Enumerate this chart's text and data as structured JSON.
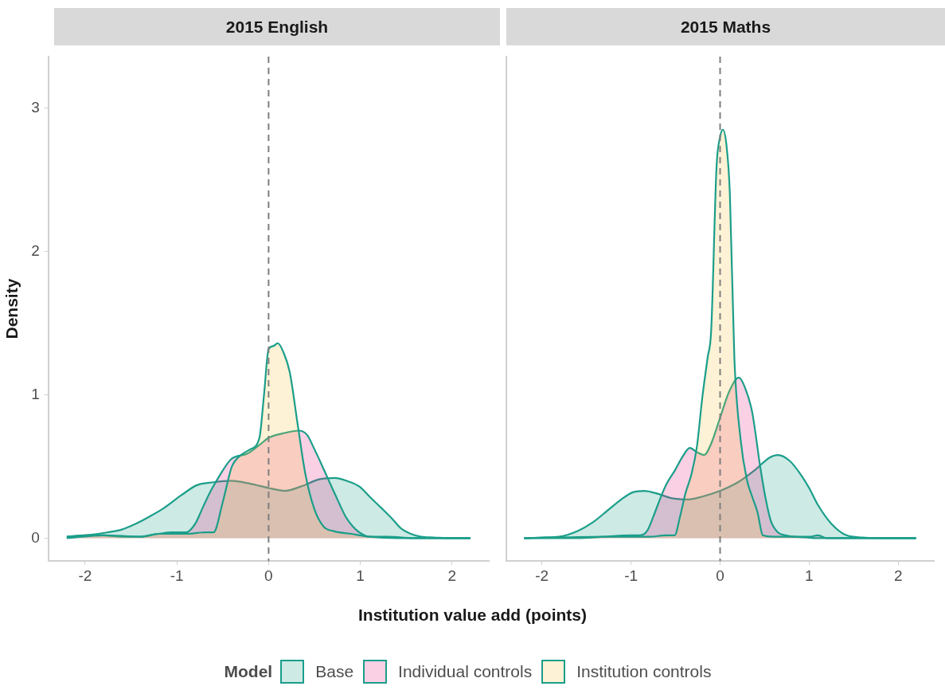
{
  "chart_data": [
    {
      "type": "area",
      "title": "2015 English",
      "xlabel": "Institution value add (points)",
      "ylabel": "Density",
      "legend_title": "Model",
      "legend": "bottom",
      "grid": false,
      "xlim": [
        -2.4,
        2.4
      ],
      "xticks": [
        -2,
        -1,
        0,
        1,
        2
      ],
      "ylim": [
        -0.16,
        3.36
      ],
      "yticks": [
        0,
        1,
        2,
        3
      ],
      "ref_lines": [
        {
          "axis": "x",
          "value": 0,
          "color": "#7f7f7f",
          "line_style": "dashed"
        }
      ],
      "series": [
        {
          "name": "Base",
          "color": "#1b9e8a",
          "x": [
            -2.2,
            -2.0,
            -1.76,
            -1.6,
            -1.45,
            -1.3,
            -1.14,
            -0.95,
            -0.78,
            -0.6,
            -0.41,
            -0.2,
            0,
            0.18,
            0.35,
            0.55,
            0.72,
            0.85,
            0.99,
            1.1,
            1.23,
            1.34,
            1.44,
            1.55,
            1.66,
            1.8,
            2.0,
            2.2
          ],
          "values": [
            0.01,
            0.02,
            0.04,
            0.06,
            0.1,
            0.15,
            0.21,
            0.3,
            0.37,
            0.39,
            0.4,
            0.38,
            0.35,
            0.33,
            0.36,
            0.41,
            0.42,
            0.4,
            0.36,
            0.29,
            0.21,
            0.14,
            0.07,
            0.03,
            0.01,
            0.005,
            0,
            0
          ]
        },
        {
          "name": "Individual controls",
          "color": "#e7298a",
          "x": [
            -2.2,
            -2.0,
            -1.8,
            -1.6,
            -1.4,
            -1.2,
            -1.05,
            -0.9,
            -0.8,
            -0.72,
            -0.63,
            -0.54,
            -0.41,
            -0.23,
            -0.1,
            0,
            0.15,
            0.33,
            0.42,
            0.5,
            0.58,
            0.65,
            0.75,
            0.84,
            0.92,
            0.99,
            1.1,
            1.3,
            1.6,
            2.2
          ],
          "values": [
            0.01,
            0.02,
            0.02,
            0.01,
            0.01,
            0.03,
            0.04,
            0.04,
            0.1,
            0.21,
            0.33,
            0.43,
            0.55,
            0.59,
            0.65,
            0.7,
            0.73,
            0.75,
            0.72,
            0.62,
            0.51,
            0.41,
            0.27,
            0.15,
            0.08,
            0.04,
            0.01,
            0.01,
            0,
            0
          ]
        },
        {
          "name": "Institution controls",
          "color": "#f5c342",
          "x": [
            -2.2,
            -1.8,
            -1.4,
            -1.2,
            -0.9,
            -0.7,
            -0.6,
            -0.5,
            -0.4,
            -0.32,
            -0.2,
            -0.1,
            -0.05,
            0,
            0.05,
            0.1,
            0.16,
            0.23,
            0.32,
            0.4,
            0.5,
            0.6,
            0.7,
            0.9,
            1.1,
            1.4,
            2.2
          ],
          "values": [
            0,
            0.02,
            0.01,
            0.03,
            0.03,
            0.04,
            0.04,
            0.25,
            0.5,
            0.57,
            0.62,
            0.7,
            1.0,
            1.32,
            1.34,
            1.36,
            1.3,
            1.16,
            0.78,
            0.45,
            0.2,
            0.08,
            0.05,
            0.03,
            0.01,
            0,
            0
          ]
        }
      ]
    },
    {
      "type": "area",
      "title": "2015 Maths",
      "legend": "bottom",
      "grid": false,
      "tick_labels": "x",
      "xlim": [
        -2.4,
        2.4
      ],
      "xticks": [
        -2,
        -1,
        0,
        1,
        2
      ],
      "ylim": [
        -0.16,
        3.36
      ],
      "yticks": [
        0,
        1,
        2,
        3
      ],
      "ref_lines": [
        {
          "axis": "x",
          "value": 0,
          "color": "#7f7f7f",
          "line_style": "dashed"
        }
      ],
      "series": [
        {
          "color": "#1b9e8a",
          "x": [
            -2.2,
            -2.0,
            -1.81,
            -1.6,
            -1.43,
            -1.25,
            -1.11,
            -0.98,
            -0.85,
            -0.7,
            -0.55,
            -0.36,
            -0.2,
            0,
            0.2,
            0.4,
            0.55,
            0.65,
            0.78,
            0.91,
            1.0,
            1.1,
            1.25,
            1.42,
            1.6,
            1.8,
            2.2
          ],
          "values": [
            0,
            0.005,
            0.01,
            0.05,
            0.11,
            0.2,
            0.27,
            0.32,
            0.33,
            0.31,
            0.28,
            0.27,
            0.29,
            0.33,
            0.39,
            0.48,
            0.56,
            0.58,
            0.54,
            0.44,
            0.35,
            0.23,
            0.1,
            0.02,
            0.005,
            0,
            0
          ]
        },
        {
          "color": "#e7298a",
          "x": [
            -2.2,
            -1.6,
            -1.3,
            -1.0,
            -0.9,
            -0.82,
            -0.75,
            -0.67,
            -0.6,
            -0.51,
            -0.42,
            -0.34,
            -0.26,
            -0.18,
            -0.1,
            0,
            0.1,
            0.21,
            0.28,
            0.36,
            0.45,
            0.51,
            0.57,
            0.65,
            0.73,
            0.85,
            1.0,
            1.1,
            1.2,
            2.2
          ],
          "values": [
            0,
            0,
            0.01,
            0.02,
            0.02,
            0.05,
            0.15,
            0.28,
            0.38,
            0.47,
            0.57,
            0.63,
            0.6,
            0.58,
            0.66,
            0.84,
            1.02,
            1.12,
            1.05,
            0.88,
            0.5,
            0.28,
            0.12,
            0.04,
            0.02,
            0.01,
            0.01,
            0.02,
            0,
            0
          ]
        },
        {
          "color": "#f5c342",
          "x": [
            -2.2,
            -1.2,
            -0.8,
            -0.6,
            -0.51,
            -0.45,
            -0.39,
            -0.32,
            -0.26,
            -0.2,
            -0.14,
            -0.1,
            -0.04,
            0,
            0.03,
            0.07,
            0.11,
            0.16,
            0.23,
            0.3,
            0.36,
            0.42,
            0.48,
            0.6,
            0.8,
            1.1,
            2.2
          ],
          "values": [
            0,
            0.01,
            0.01,
            0.02,
            0.02,
            0.15,
            0.31,
            0.45,
            0.64,
            0.98,
            1.26,
            1.45,
            2.59,
            2.8,
            2.85,
            2.75,
            2.4,
            1.26,
            0.69,
            0.41,
            0.29,
            0.18,
            0.02,
            0.01,
            0.01,
            0,
            0
          ]
        }
      ]
    }
  ]
}
